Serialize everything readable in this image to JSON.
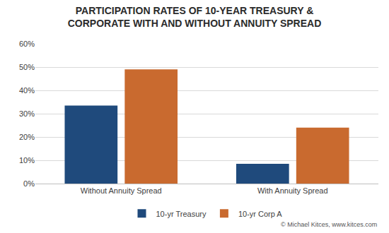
{
  "chart_data": {
    "type": "bar",
    "title": "PARTICIPATION RATES OF 10-YEAR TREASURY &\nCORPORATE WITH AND WITHOUT ANNUITY SPREAD",
    "categories": [
      "Without Annuity Spread",
      "With Annuity Spread"
    ],
    "series": [
      {
        "name": "10-yr Treasury",
        "color": "#1f4a7c",
        "values": [
          33.5,
          8.5
        ]
      },
      {
        "name": "10-yr Corp A",
        "color": "#c96a2f",
        "values": [
          49,
          24
        ]
      }
    ],
    "ylim": [
      0,
      60
    ],
    "yticks": [
      {
        "value": 0,
        "label": "0%"
      },
      {
        "value": 10,
        "label": "10%"
      },
      {
        "value": 20,
        "label": "20%"
      },
      {
        "value": 30,
        "label": "30%"
      },
      {
        "value": 40,
        "label": "40%"
      },
      {
        "value": 50,
        "label": "50%"
      },
      {
        "value": 60,
        "label": "60%"
      }
    ],
    "grid": true,
    "legend": "bottom",
    "annotations": [
      {
        "text": "© Michael Kitces, www.kitces.com"
      }
    ]
  }
}
